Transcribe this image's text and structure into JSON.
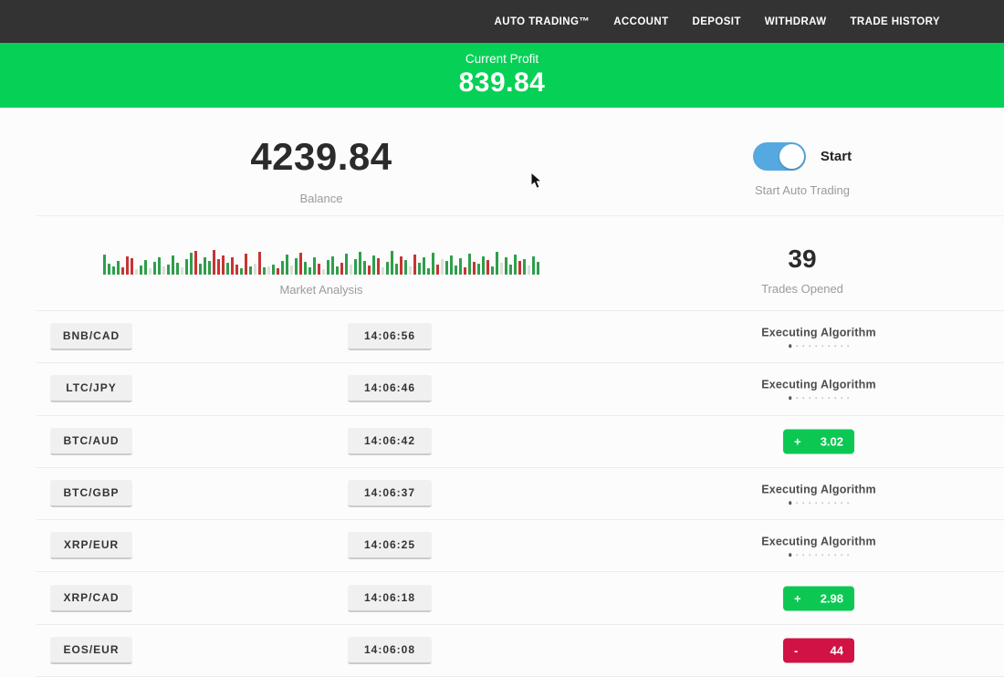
{
  "nav": {
    "items": [
      {
        "id": "auto-trading",
        "label": "AUTO TRADING™"
      },
      {
        "id": "account",
        "label": "ACCOUNT"
      },
      {
        "id": "deposit",
        "label": "DEPOSIT"
      },
      {
        "id": "withdraw",
        "label": "WITHDRAW"
      },
      {
        "id": "trade-history",
        "label": "TRADE HISTORY"
      }
    ]
  },
  "profit_banner": {
    "label": "Current Profit",
    "value": "839.84"
  },
  "stats": {
    "balance": {
      "value": "4239.84",
      "label": "Balance"
    },
    "auto_trading": {
      "toggle_label": "Start",
      "label": "Start Auto Trading",
      "state": "on"
    },
    "market_analysis": {
      "label": "Market Analysis"
    },
    "trades_opened": {
      "value": "39",
      "label": "Trades Opened"
    }
  },
  "table": {
    "executing_label": "Executing Algorithm",
    "progress_dots": 10
  },
  "trades": [
    {
      "pair": "BNB/CAD",
      "time": "14:06:56",
      "status": "executing"
    },
    {
      "pair": "LTC/JPY",
      "time": "14:06:46",
      "status": "executing"
    },
    {
      "pair": "BTC/AUD",
      "time": "14:06:42",
      "status": "win",
      "sign": "+",
      "value": "3.02"
    },
    {
      "pair": "BTC/GBP",
      "time": "14:06:37",
      "status": "executing"
    },
    {
      "pair": "XRP/EUR",
      "time": "14:06:25",
      "status": "executing"
    },
    {
      "pair": "XRP/CAD",
      "time": "14:06:18",
      "status": "win",
      "sign": "+",
      "value": "2.98"
    },
    {
      "pair": "EOS/EUR",
      "time": "14:06:08",
      "status": "loss",
      "sign": "-",
      "value": "44"
    }
  ],
  "colors": {
    "nav_bg": "#333333",
    "accent_green": "#06d156",
    "badge_green": "#0cc853",
    "badge_red": "#d01245",
    "toggle_blue": "#55a8e0",
    "bar_green": "#2f9e4c",
    "bar_red": "#c63434",
    "bar_light": "#dcded9"
  },
  "market_bars": [
    "22g",
    "12g",
    "9g",
    "15g",
    "8r",
    "20r",
    "18r",
    "6l",
    "10g",
    "16g",
    "7l",
    "14g",
    "19g",
    "9l",
    "11g",
    "21g",
    "13g",
    "8l",
    "17g",
    "24g",
    "26r",
    "12g",
    "19g",
    "15g",
    "27r",
    "17r",
    "21r",
    "13g",
    "19r",
    "11r",
    "7g",
    "23r",
    "9g",
    "12l",
    "25r",
    "8g",
    "9l",
    "11g",
    "7r",
    "15g",
    "22g",
    "10l",
    "18g",
    "24r",
    "14g",
    "8g",
    "19g",
    "12r",
    "6l",
    "16g",
    "20g",
    "9g",
    "13r",
    "23g",
    "11l",
    "17g",
    "25g",
    "15g",
    "10r",
    "21g",
    "18r",
    "8l",
    "14g",
    "26g",
    "12g",
    "20r",
    "16g",
    "9l",
    "22r",
    "13g",
    "19g",
    "7g",
    "24g",
    "11r",
    "17l",
    "15g",
    "21g",
    "10g",
    "18g",
    "8r",
    "23g",
    "14r",
    "12g",
    "20g",
    "16r",
    "9g",
    "25g",
    "13l",
    "19g",
    "11g",
    "22g",
    "15r",
    "17g",
    "10l",
    "20g",
    "14g"
  ]
}
